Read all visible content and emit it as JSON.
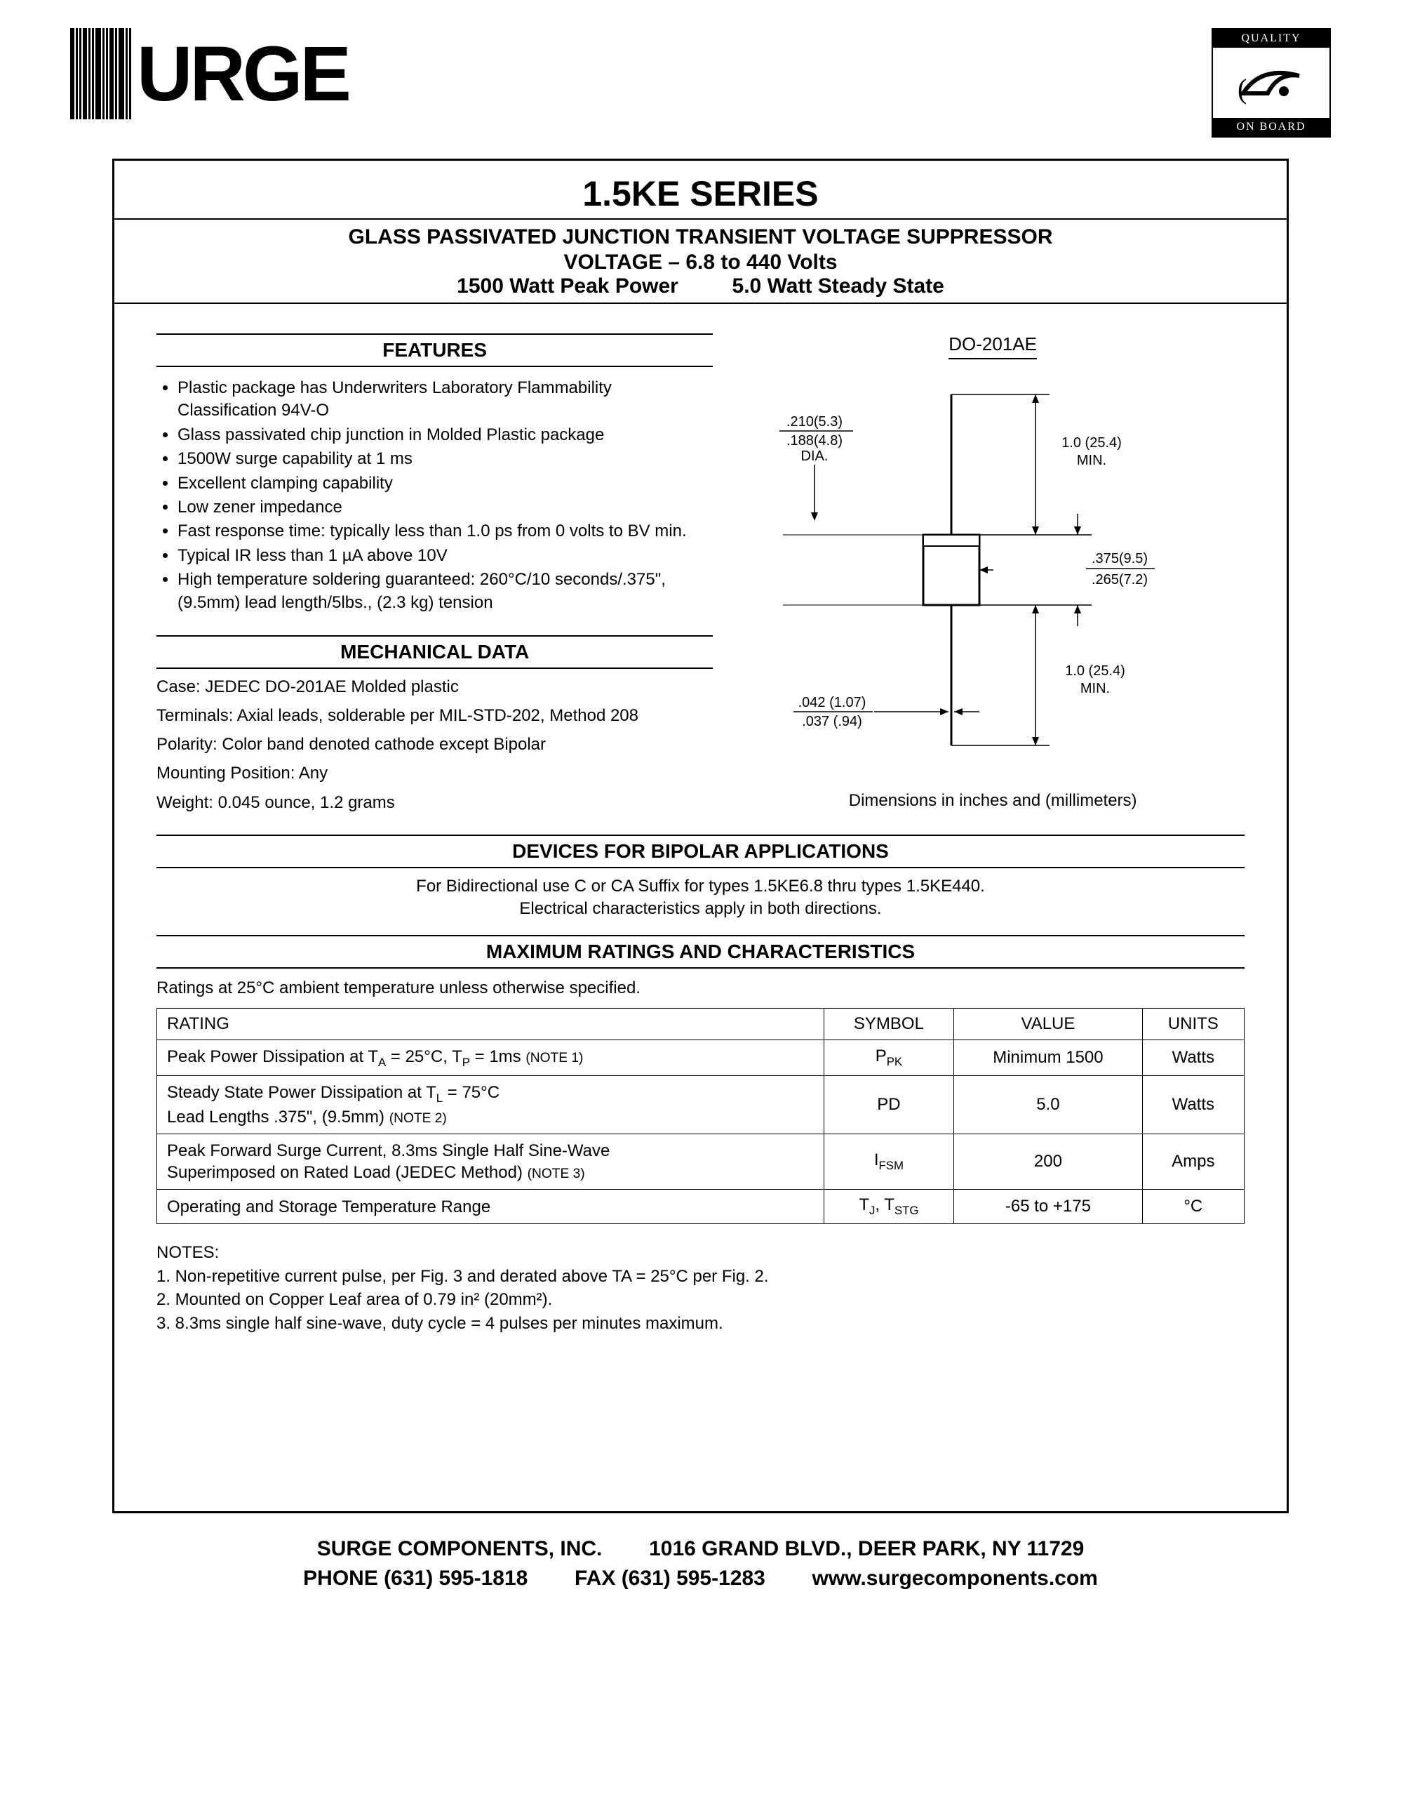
{
  "header": {
    "logo_text": "URGE",
    "badge_top": "QUALITY",
    "badge_bottom": "ON BOARD"
  },
  "title": {
    "series": "1.5KE SERIES",
    "line1": "GLASS PASSIVATED JUNCTION TRANSIENT VOLTAGE SUPPRESSOR",
    "line2": "VOLTAGE – 6.8 to 440 Volts",
    "line3a": "1500 Watt Peak Power",
    "line3b": "5.0 Watt Steady State"
  },
  "features": {
    "heading": "FEATURES",
    "items": [
      "Plastic package has Underwriters Laboratory Flammability Classification 94V-O",
      "Glass passivated chip junction in Molded Plastic package",
      "1500W surge capability at 1 ms",
      "Excellent clamping capability",
      "Low zener impedance",
      "Fast response time: typically less than 1.0 ps from 0 volts to BV min.",
      "Typical IR less than 1 µA above 10V",
      "High temperature soldering guaranteed: 260°C/10 seconds/.375\", (9.5mm) lead length/5lbs., (2.3 kg) tension"
    ]
  },
  "mechanical": {
    "heading": "MECHANICAL DATA",
    "case": "Case: JEDEC DO-201AE Molded plastic",
    "terminals": "Terminals: Axial leads, solderable per MIL-STD-202, Method 208",
    "polarity": "Polarity: Color band denoted cathode except Bipolar",
    "mounting": "Mounting Position: Any",
    "weight": "Weight: 0.045 ounce, 1.2 grams"
  },
  "package": {
    "label": "DO-201AE",
    "dims": {
      "body_dia_in_max": ".210(5.3)",
      "body_dia_in_min": ".188(4.8)",
      "body_dia_label": "DIA.",
      "lead_len_top": "1.0 (25.4)",
      "lead_len_top_lbl": "MIN.",
      "body_len_max": ".375(9.5)",
      "body_len_min": ".265(7.2)",
      "lead_len_bot": "1.0 (25.4)",
      "lead_len_bot_lbl": "MIN.",
      "lead_dia_max": ".042 (1.07)",
      "lead_dia_min": ".037 (.94)"
    },
    "caption": "Dimensions in inches and (millimeters)"
  },
  "bipolar": {
    "heading": "DEVICES FOR BIPOLAR APPLICATIONS",
    "line1": "For Bidirectional use C or CA Suffix for types 1.5KE6.8 thru types 1.5KE440.",
    "line2": "Electrical characteristics apply in both directions."
  },
  "ratings": {
    "heading": "MAXIMUM RATINGS AND CHARACTERISTICS",
    "cond": "Ratings at 25°C ambient temperature unless otherwise specified.",
    "columns": [
      "RATING",
      "SYMBOL",
      "VALUE",
      "UNITS"
    ],
    "rows": [
      {
        "rating_html": "Peak Power Dissipation at T<span class='sub'>A</span> = 25°C, T<span class='sub'>P</span> = 1ms <span class='smallnote'>(NOTE 1)</span>",
        "symbol_html": "P<span class='sub'>PK</span>",
        "value": "Minimum 1500",
        "units": "Watts"
      },
      {
        "rating_html": "Steady State Power Dissipation at T<span class='sub'>L</span> = 75°C<br>Lead Lengths .375\", (9.5mm) <span class='smallnote'>(NOTE 2)</span>",
        "symbol_html": "PD",
        "value": "5.0",
        "units": "Watts"
      },
      {
        "rating_html": "Peak Forward Surge Current, 8.3ms Single Half Sine-Wave<br>Superimposed on Rated Load (JEDEC Method) <span class='smallnote'>(NOTE 3)</span>",
        "symbol_html": "I<span class='sub'>FSM</span>",
        "value": "200",
        "units": "Amps"
      },
      {
        "rating_html": "Operating and Storage Temperature Range",
        "symbol_html": "T<span class='sub'>J</span>, T<span class='sub'>STG</span>",
        "value": "-65 to +175",
        "units": "°C"
      }
    ]
  },
  "notes": {
    "heading": "NOTES:",
    "items": [
      "1. Non-repetitive current pulse, per Fig. 3 and derated above TA = 25°C per Fig. 2.",
      "2. Mounted on Copper Leaf area of 0.79 in² (20mm²).",
      "3. 8.3ms single half sine-wave, duty cycle = 4 pulses per minutes maximum."
    ]
  },
  "footer": {
    "line1a": "SURGE COMPONENTS, INC.",
    "line1b": "1016 GRAND BLVD., DEER PARK, NY 11729",
    "line2a": "PHONE (631) 595-1818",
    "line2b": "FAX (631) 595-1283",
    "line2c": "www.surgecomponents.com"
  },
  "style": {
    "text_color": "#000000",
    "bg_color": "#ffffff",
    "rule_color": "#000000"
  }
}
